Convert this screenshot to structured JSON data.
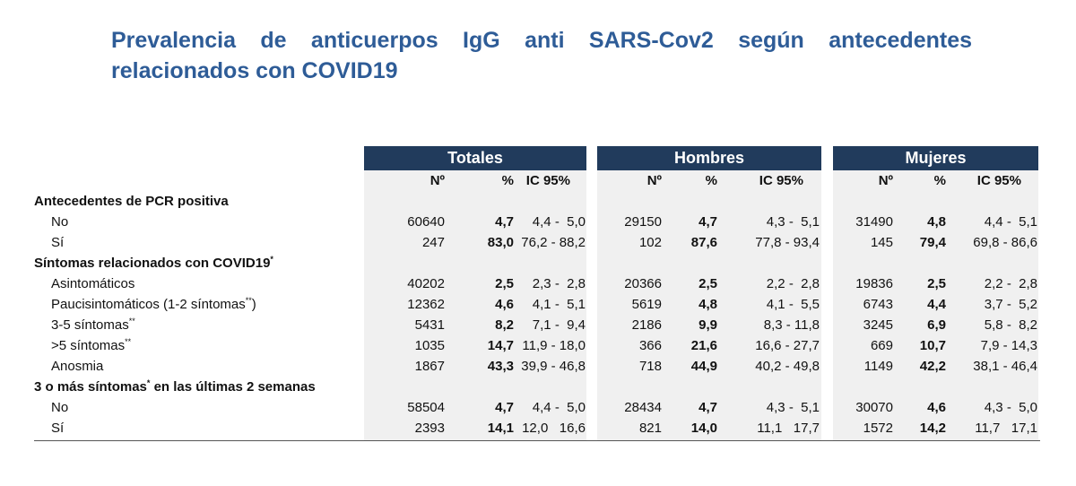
{
  "title_line1": "Prevalencia de anticuerpos IgG anti SARS-Cov2 según antecedentes",
  "title_line2": "relacionados con COVID19",
  "groups": [
    "Totales",
    "Hombres",
    "Mujeres"
  ],
  "subheaders": [
    "Nº",
    "%",
    "IC 95%"
  ],
  "rows": [
    {
      "type": "section",
      "label": "Antecedentes de PCR positiva",
      "sup": ""
    },
    {
      "type": "data",
      "label": "No",
      "sup": "",
      "suffix": "",
      "values": [
        [
          "60640",
          "4,7",
          "4,4 -  5,0"
        ],
        [
          "29150",
          "4,7",
          "4,3 -  5,1"
        ],
        [
          "31490",
          "4,8",
          "4,4 -  5,1"
        ]
      ]
    },
    {
      "type": "data",
      "label": "Sí",
      "sup": "",
      "suffix": "",
      "values": [
        [
          "247",
          "83,0",
          "76,2 - 88,2"
        ],
        [
          "102",
          "87,6",
          "77,8 - 93,4"
        ],
        [
          "145",
          "79,4",
          "69,8 - 86,6"
        ]
      ]
    },
    {
      "type": "section",
      "label": "Síntomas relacionados con  COVID19",
      "sup": "*"
    },
    {
      "type": "data",
      "label": "Asintomáticos",
      "sup": "",
      "suffix": "",
      "values": [
        [
          "40202",
          "2,5",
          "2,3 -  2,8"
        ],
        [
          "20366",
          "2,5",
          "2,2 -  2,8"
        ],
        [
          "19836",
          "2,5",
          "2,2 -  2,8"
        ]
      ]
    },
    {
      "type": "data",
      "label": "Paucisintomáticos (1-2 síntomas",
      "sup": "**",
      "suffix": ")",
      "values": [
        [
          "12362",
          "4,6",
          "4,1 -  5,1"
        ],
        [
          "5619",
          "4,8",
          "4,1 -  5,5"
        ],
        [
          "6743",
          "4,4",
          "3,7 -  5,2"
        ]
      ]
    },
    {
      "type": "data",
      "label": "3-5 síntomas",
      "sup": "**",
      "suffix": "",
      "values": [
        [
          "5431",
          "8,2",
          "7,1 -  9,4"
        ],
        [
          "2186",
          "9,9",
          "8,3 - 11,8"
        ],
        [
          "3245",
          "6,9",
          "5,8 -  8,2"
        ]
      ]
    },
    {
      "type": "data",
      "label": ">5 síntomas",
      "sup": "**",
      "suffix": "",
      "values": [
        [
          "1035",
          "14,7",
          "11,9 - 18,0"
        ],
        [
          "366",
          "21,6",
          "16,6 - 27,7"
        ],
        [
          "669",
          "10,7",
          "7,9 - 14,3"
        ]
      ]
    },
    {
      "type": "data",
      "label": "Anosmia",
      "sup": "",
      "suffix": "",
      "values": [
        [
          "1867",
          "43,3",
          "39,9 - 46,8"
        ],
        [
          "718",
          "44,9",
          "40,2 - 49,8"
        ],
        [
          "1149",
          "42,2",
          "38,1 - 46,4"
        ]
      ]
    },
    {
      "type": "section",
      "label": "3 o más síntomas",
      "sup": "*",
      "suffix": " en las últimas 2 semanas"
    },
    {
      "type": "data",
      "label": "No",
      "sup": "",
      "suffix": "",
      "values": [
        [
          "58504",
          "4,7",
          "4,4 -  5,0"
        ],
        [
          "28434",
          "4,7",
          "4,3 -  5,1"
        ],
        [
          "30070",
          "4,6",
          "4,3 -  5,0"
        ]
      ]
    },
    {
      "type": "data",
      "label": "Sí",
      "sup": "",
      "suffix": "",
      "values": [
        [
          "2393",
          "14,1",
          "12,0   16,6"
        ],
        [
          "821",
          "14,0",
          "11,1   17,7"
        ],
        [
          "1572",
          "14,2",
          "11,7   17,1"
        ]
      ]
    }
  ]
}
